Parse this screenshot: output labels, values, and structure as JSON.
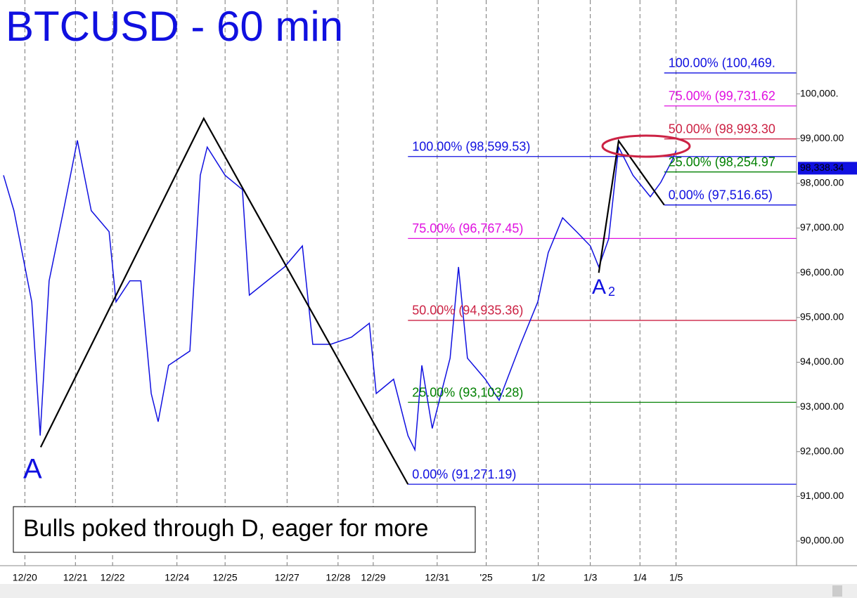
{
  "chart_data": {
    "type": "line",
    "title": "BTCUSD - 60 min",
    "xlim": [
      0,
      16
    ],
    "ylim": [
      89450,
      102100
    ],
    "xticks": [
      {
        "value": 0.43,
        "label": "12/20"
      },
      {
        "value": 1.45,
        "label": "12/21"
      },
      {
        "value": 2.2,
        "label": "12/22"
      },
      {
        "value": 3.5,
        "label": "12/24"
      },
      {
        "value": 4.47,
        "label": "12/25"
      },
      {
        "value": 5.72,
        "label": "12/27"
      },
      {
        "value": 6.75,
        "label": "12/28"
      },
      {
        "value": 7.46,
        "label": "12/29"
      },
      {
        "value": 8.75,
        "label": "12/31"
      },
      {
        "value": 9.74,
        "label": "'25"
      },
      {
        "value": 10.79,
        "label": "1/2"
      },
      {
        "value": 11.84,
        "label": "1/3"
      },
      {
        "value": 12.84,
        "label": "1/4"
      },
      {
        "value": 13.57,
        "label": "1/5"
      }
    ],
    "yticks": [
      {
        "value": 90000,
        "label": "90,000.00"
      },
      {
        "value": 91000,
        "label": "91,000.00"
      },
      {
        "value": 92000,
        "label": "92,000.00"
      },
      {
        "value": 93000,
        "label": "93,000.00"
      },
      {
        "value": 94000,
        "label": "94,000.00"
      },
      {
        "value": 95000,
        "label": "95,000.00"
      },
      {
        "value": 96000,
        "label": "96,000.00"
      },
      {
        "value": 97000,
        "label": "97,000.00"
      },
      {
        "value": 98000,
        "label": "98,000.00"
      },
      {
        "value": 99000,
        "label": "99,000.00"
      },
      {
        "value": 100000,
        "label": "100,000."
      }
    ],
    "series": [
      {
        "name": "BTCUSD",
        "color": "#1010e0",
        "x": [
          0,
          0.21,
          0.57,
          0.74,
          0.92,
          1.21,
          1.49,
          1.77,
          2.13,
          2.27,
          2.55,
          2.77,
          2.98,
          3.12,
          3.33,
          3.76,
          3.97,
          4.11,
          4.47,
          4.82,
          4.96,
          5.32,
          5.67,
          6.03,
          6.24,
          6.6,
          7.02,
          7.38,
          7.52,
          7.87,
          8.16,
          8.3,
          8.44,
          8.65,
          9.01,
          9.18,
          9.36,
          9.72,
          10,
          10.43,
          10.78,
          10.99,
          11.28,
          11.56,
          11.84,
          12.01,
          12.21,
          12.41,
          12.7,
          13.05,
          13.26,
          13.48,
          13.57
        ],
        "values": [
          98180,
          97390,
          95350,
          92360,
          95820,
          97390,
          98960,
          97390,
          96920,
          95350,
          95820,
          95820,
          93300,
          92670,
          93930,
          94250,
          98180,
          98810,
          98180,
          97860,
          95500,
          95820,
          96130,
          96600,
          94400,
          94400,
          94560,
          94870,
          93300,
          93620,
          92360,
          92040,
          93930,
          92520,
          94090,
          96130,
          94090,
          93620,
          93150,
          94400,
          95350,
          96450,
          97230,
          96920,
          96600,
          96130,
          96760,
          98810,
          98180,
          97700,
          98020,
          98490,
          98730
        ]
      },
      {
        "name": "pattern",
        "color": "#000000",
        "x": [
          0.75,
          4.04,
          8.16,
          null,
          12.01,
          12.41,
          13.33
        ],
        "values": [
          92100,
          99450,
          91271.19,
          null,
          96000,
          98950,
          97516.65
        ]
      }
    ],
    "levels": [
      {
        "label": "100.00% (98,599.53)",
        "value": 98599.53,
        "color": "#1010e0",
        "x0": 8.16
      },
      {
        "label": "75.00% (96,767.45)",
        "value": 96767.45,
        "color": "#e010e0",
        "x0": 8.16
      },
      {
        "label": "50.00% (94,935.36)",
        "value": 94935.36,
        "color": "#cc2244",
        "x0": 8.16
      },
      {
        "label": "25.00% (93,103.28)",
        "value": 93103.28,
        "color": "#008000",
        "x0": 8.16
      },
      {
        "label": "0.00% (91,271.19)",
        "value": 91271.19,
        "color": "#1010e0",
        "x0": 8.16
      },
      {
        "label": "100.00% (100,469.",
        "value": 100469,
        "color": "#1010e0",
        "x0": 13.33
      },
      {
        "label": "75.00% (99,731.62",
        "value": 99731.62,
        "color": "#e010e0",
        "x0": 13.33
      },
      {
        "label": "50.00% (98,993.30",
        "value": 98993.3,
        "color": "#cc2244",
        "x0": 13.33
      },
      {
        "label": "25.00% (98,254.97",
        "value": 98254.97,
        "color": "#008000",
        "x0": 13.33
      },
      {
        "label": "0.00% (97,516.65)",
        "value": 97516.65,
        "color": "#1010e0",
        "x0": 13.33
      }
    ],
    "last_price": {
      "value": 98338.34,
      "label": "98,338.34"
    },
    "annotations": {
      "a": "A",
      "a2": "A",
      "a2_sub": "2",
      "note": "Bulls poked through D, eager for more"
    }
  }
}
